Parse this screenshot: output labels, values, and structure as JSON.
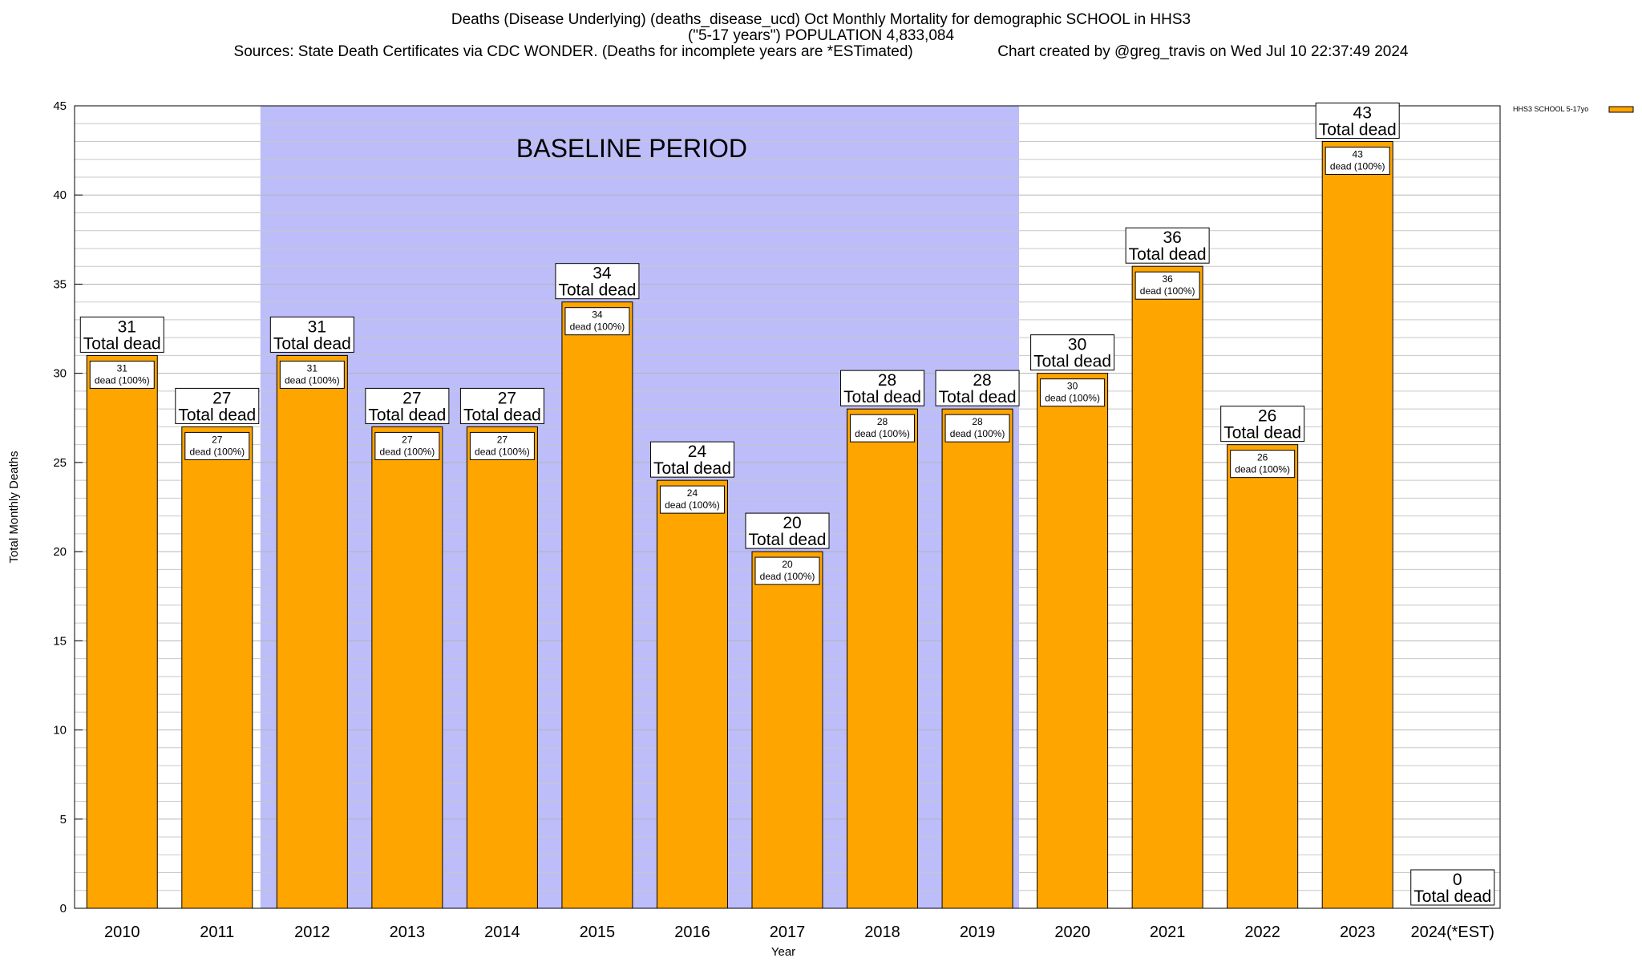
{
  "title": {
    "line1": "Deaths (Disease Underlying) (deaths_disease_ucd) Oct Monthly Mortality for demographic SCHOOL in HHS3",
    "line2": "(\"5-17 years\") POPULATION 4,833,084",
    "line3": "Sources: State Death Certificates via CDC WONDER. (Deaths for incomplete years are *ESTimated)                    Chart created by @greg_travis on Wed Jul 10 22:37:49 2024"
  },
  "colors": {
    "bar": "#FFA500",
    "baseline_shade": "#BDBDF9",
    "grid": "#C8C8C8"
  },
  "chart_data": {
    "type": "bar",
    "title": "Deaths (Disease Underlying) (deaths_disease_ucd) Oct Monthly Mortality for demographic SCHOOL in HHS3",
    "xlabel": "Year",
    "ylabel": "Total Monthly Deaths",
    "ylim": [
      0,
      45
    ],
    "y_major_ticks": [
      0,
      5,
      10,
      15,
      20,
      25,
      30,
      35,
      40,
      45
    ],
    "y_minor_step": 1,
    "grid": true,
    "legend_position": "top-right",
    "categories": [
      "2010",
      "2011",
      "2012",
      "2013",
      "2014",
      "2015",
      "2016",
      "2017",
      "2018",
      "2019",
      "2020",
      "2021",
      "2022",
      "2023",
      "2024(*EST)"
    ],
    "series": [
      {
        "name": "HHS3 SCHOOL 5-17yo",
        "values": [
          31,
          27,
          31,
          27,
          27,
          34,
          24,
          20,
          28,
          28,
          30,
          36,
          26,
          43,
          0
        ]
      }
    ],
    "baseline_period": {
      "label": "BASELINE PERIOD",
      "start": "2012",
      "end": "2019"
    },
    "total_label_suffix": "Total dead",
    "inner_label_suffix": "dead (100%)"
  }
}
